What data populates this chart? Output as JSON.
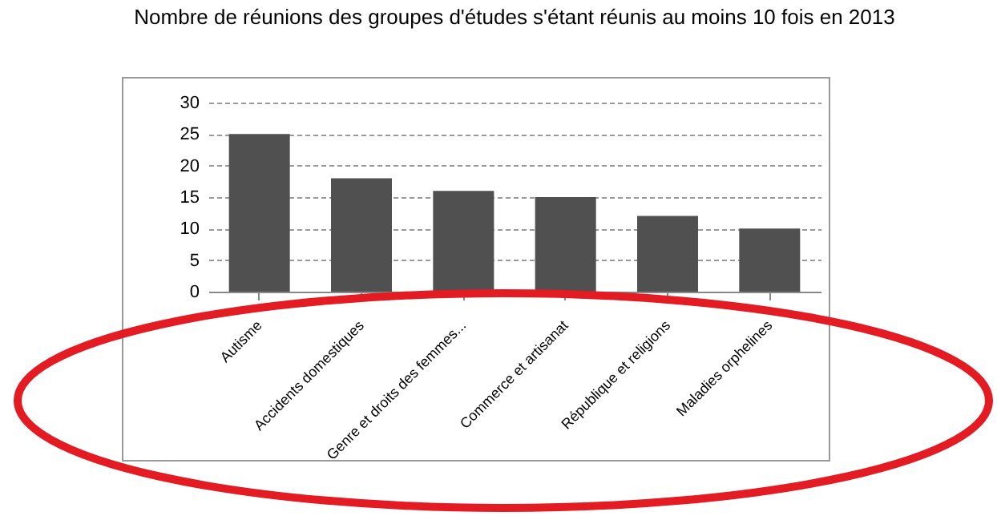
{
  "chart_data": {
    "type": "bar",
    "title": "Nombre de réunions des groupes d'études s'étant réunis au moins 10 fois en 2013",
    "categories": [
      "Autisme",
      "Accidents domestiques",
      "Genre et droits des femmes...",
      "Commerce et artisanat",
      "République et religions",
      "Maladies orphelines"
    ],
    "values": [
      25,
      18,
      16,
      15,
      12,
      10
    ],
    "color": "#505050",
    "ylim": [
      0,
      30
    ],
    "yticks": [
      0,
      5,
      10,
      15,
      20,
      25,
      30
    ],
    "grid": "y"
  }
}
